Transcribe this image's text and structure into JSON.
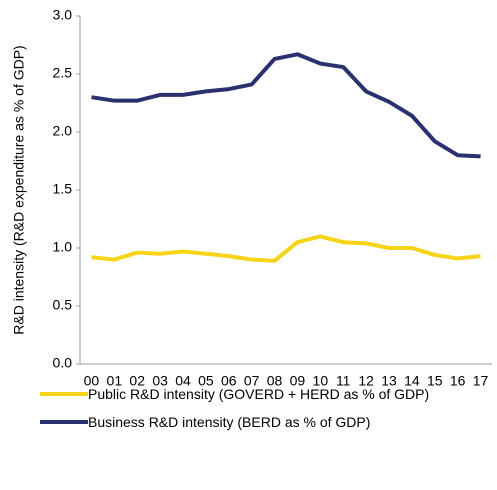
{
  "chart_data": {
    "type": "line",
    "y_label": "R&D intensity (R&D expenditure as % of GDP)",
    "categories": [
      "00",
      "01",
      "02",
      "03",
      "04",
      "05",
      "06",
      "07",
      "08",
      "09",
      "10",
      "11",
      "12",
      "13",
      "14",
      "15",
      "16",
      "17"
    ],
    "series": [
      {
        "name": "Public R&D intensity (GOVERD + HERD as % of GDP)",
        "color": "#f7d417",
        "values": [
          0.92,
          0.9,
          0.96,
          0.95,
          0.97,
          0.95,
          0.93,
          0.9,
          0.89,
          1.05,
          1.1,
          1.05,
          1.04,
          1.0,
          1.0,
          0.94,
          0.91,
          0.93
        ]
      },
      {
        "name": "Business R&D intensity (BERD as % of GDP)",
        "color": "#2b3170",
        "values": [
          2.3,
          2.27,
          2.27,
          2.32,
          2.32,
          2.35,
          2.37,
          2.41,
          2.63,
          2.67,
          2.59,
          2.56,
          2.35,
          2.26,
          2.14,
          1.92,
          1.8,
          1.79
        ]
      }
    ],
    "ylim": [
      0,
      3
    ],
    "yticks": [
      {
        "value": 0,
        "label": "0.0"
      },
      0.5,
      {
        "value": 1,
        "label": "1.0"
      },
      1.5,
      {
        "value": 2,
        "label": "2.0"
      },
      2.5,
      {
        "value": 3,
        "label": "3.0"
      }
    ]
  }
}
